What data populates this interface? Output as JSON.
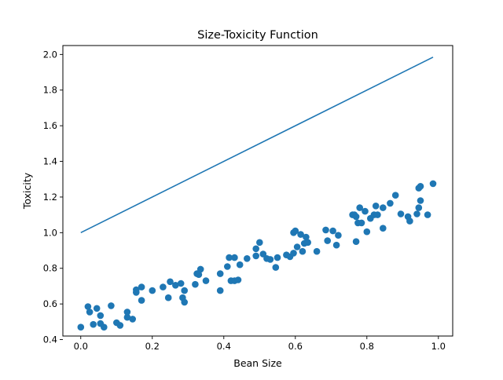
{
  "chart_data": {
    "type": "scatter",
    "title": "Size-Toxicity Function",
    "xlabel": "Bean Size",
    "ylabel": "Toxicity",
    "xlim": [
      -0.05,
      1.04
    ],
    "ylim": [
      0.42,
      2.05
    ],
    "grid": false,
    "legend": "none",
    "x_ticks": [
      "0.0",
      "0.2",
      "0.4",
      "0.6",
      "0.8",
      "1.0"
    ],
    "y_ticks": [
      "0.4",
      "0.6",
      "0.8",
      "1.0",
      "1.2",
      "1.4",
      "1.6",
      "1.8",
      "2.0"
    ],
    "series": [
      {
        "kind": "line",
        "color": "#1f77b4",
        "x": [
          0.0,
          0.985
        ],
        "y": [
          1.0,
          1.985
        ]
      },
      {
        "kind": "scatter",
        "color": "#1f77b4",
        "x": [
          0.0,
          0.02,
          0.025,
          0.035,
          0.045,
          0.055,
          0.055,
          0.065,
          0.085,
          0.1,
          0.11,
          0.13,
          0.13,
          0.145,
          0.155,
          0.155,
          0.17,
          0.17,
          0.2,
          0.23,
          0.245,
          0.25,
          0.265,
          0.28,
          0.285,
          0.29,
          0.29,
          0.32,
          0.325,
          0.33,
          0.335,
          0.35,
          0.39,
          0.39,
          0.41,
          0.415,
          0.42,
          0.43,
          0.43,
          0.44,
          0.445,
          0.465,
          0.49,
          0.49,
          0.5,
          0.51,
          0.52,
          0.53,
          0.545,
          0.55,
          0.575,
          0.585,
          0.595,
          0.595,
          0.6,
          0.605,
          0.615,
          0.62,
          0.625,
          0.63,
          0.635,
          0.66,
          0.685,
          0.69,
          0.705,
          0.715,
          0.72,
          0.76,
          0.765,
          0.77,
          0.77,
          0.775,
          0.78,
          0.785,
          0.795,
          0.8,
          0.81,
          0.82,
          0.825,
          0.83,
          0.845,
          0.845,
          0.865,
          0.88,
          0.895,
          0.915,
          0.92,
          0.94,
          0.945,
          0.945,
          0.95,
          0.95,
          0.97,
          0.985
        ],
        "y": [
          0.47,
          0.585,
          0.555,
          0.485,
          0.575,
          0.49,
          0.535,
          0.47,
          0.59,
          0.495,
          0.48,
          0.555,
          0.525,
          0.515,
          0.68,
          0.665,
          0.695,
          0.62,
          0.675,
          0.695,
          0.635,
          0.725,
          0.705,
          0.715,
          0.635,
          0.675,
          0.61,
          0.71,
          0.77,
          0.765,
          0.795,
          0.73,
          0.77,
          0.675,
          0.81,
          0.86,
          0.73,
          0.73,
          0.86,
          0.735,
          0.82,
          0.855,
          0.91,
          0.87,
          0.945,
          0.88,
          0.855,
          0.85,
          0.805,
          0.86,
          0.875,
          0.865,
          1.0,
          0.885,
          1.01,
          0.92,
          0.99,
          0.895,
          0.94,
          0.975,
          0.945,
          0.895,
          1.015,
          0.955,
          1.01,
          0.93,
          0.985,
          1.1,
          1.1,
          0.95,
          1.09,
          1.055,
          1.14,
          1.055,
          1.12,
          1.005,
          1.08,
          1.1,
          1.15,
          1.1,
          1.14,
          1.025,
          1.165,
          1.21,
          1.105,
          1.09,
          1.065,
          1.105,
          1.14,
          1.25,
          1.26,
          1.18,
          1.1,
          1.275
        ]
      }
    ]
  }
}
